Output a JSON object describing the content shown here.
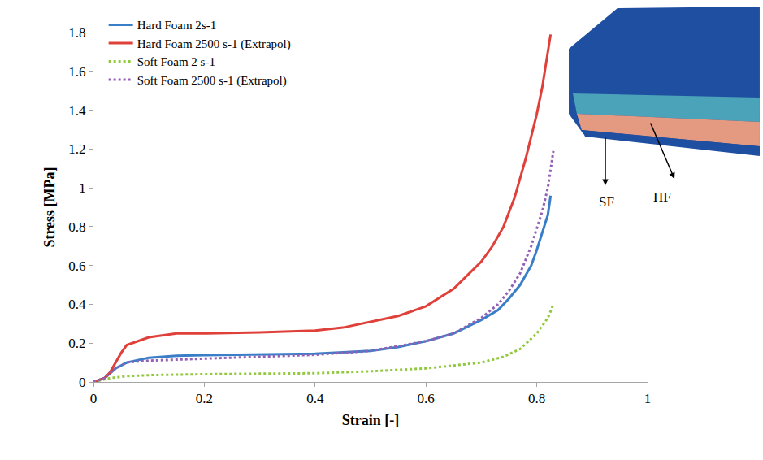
{
  "chart_data": {
    "type": "line",
    "x_label": "Strain [-]",
    "y_label": "Stress [MPa]",
    "xlim": [
      0,
      1
    ],
    "xticks": [
      0,
      0.2,
      0.4,
      0.6,
      0.8,
      1
    ],
    "ylim": [
      0,
      1.8
    ],
    "yticks": [
      0,
      0.2,
      0.4,
      0.6,
      0.8,
      1,
      1.2,
      1.4,
      1.6,
      1.8
    ],
    "grid": false,
    "legend": "top-left",
    "annotations": [
      {
        "text": "SF"
      },
      {
        "text": "HF"
      }
    ],
    "series": [
      {
        "name": "Hard Foam 2s-1",
        "color": "#3a7ec8",
        "line_style": "solid",
        "x": [
          0,
          0.02,
          0.04,
          0.06,
          0.1,
          0.15,
          0.2,
          0.3,
          0.4,
          0.5,
          0.55,
          0.6,
          0.65,
          0.7,
          0.73,
          0.75,
          0.77,
          0.79,
          0.8,
          0.81,
          0.82,
          0.825
        ],
        "values": [
          0,
          0.02,
          0.07,
          0.1,
          0.125,
          0.135,
          0.138,
          0.14,
          0.145,
          0.16,
          0.18,
          0.21,
          0.25,
          0.32,
          0.37,
          0.43,
          0.5,
          0.6,
          0.68,
          0.77,
          0.86,
          0.96
        ]
      },
      {
        "name": "Hard Foam 2500 s-1 (Extrapol)",
        "color": "#e0403a",
        "line_style": "solid",
        "x": [
          0,
          0.02,
          0.03,
          0.05,
          0.06,
          0.1,
          0.15,
          0.2,
          0.3,
          0.4,
          0.45,
          0.5,
          0.55,
          0.6,
          0.65,
          0.7,
          0.72,
          0.74,
          0.76,
          0.78,
          0.8,
          0.81,
          0.82,
          0.825
        ],
        "values": [
          0,
          0.02,
          0.05,
          0.15,
          0.19,
          0.23,
          0.25,
          0.25,
          0.255,
          0.265,
          0.28,
          0.31,
          0.34,
          0.39,
          0.48,
          0.62,
          0.7,
          0.8,
          0.95,
          1.15,
          1.38,
          1.52,
          1.7,
          1.79
        ]
      },
      {
        "name": "Soft Foam 2 s-1",
        "color": "#92c83e",
        "line_style": "dotted",
        "x": [
          0,
          0.03,
          0.06,
          0.1,
          0.2,
          0.3,
          0.4,
          0.5,
          0.6,
          0.65,
          0.7,
          0.74,
          0.77,
          0.8,
          0.82,
          0.83
        ],
        "values": [
          0,
          0.02,
          0.03,
          0.035,
          0.04,
          0.042,
          0.045,
          0.055,
          0.07,
          0.085,
          0.1,
          0.13,
          0.17,
          0.25,
          0.33,
          0.4
        ]
      },
      {
        "name": "Soft Foam 2500 s-1 (Extrapol)",
        "color": "#9461b5",
        "line_style": "dotted",
        "x": [
          0,
          0.02,
          0.04,
          0.06,
          0.1,
          0.2,
          0.3,
          0.4,
          0.5,
          0.6,
          0.65,
          0.7,
          0.73,
          0.75,
          0.77,
          0.79,
          0.81,
          0.82,
          0.83
        ],
        "values": [
          0,
          0.02,
          0.07,
          0.1,
          0.11,
          0.12,
          0.13,
          0.14,
          0.16,
          0.21,
          0.25,
          0.33,
          0.4,
          0.47,
          0.56,
          0.7,
          0.88,
          1.0,
          1.19
        ]
      }
    ]
  }
}
